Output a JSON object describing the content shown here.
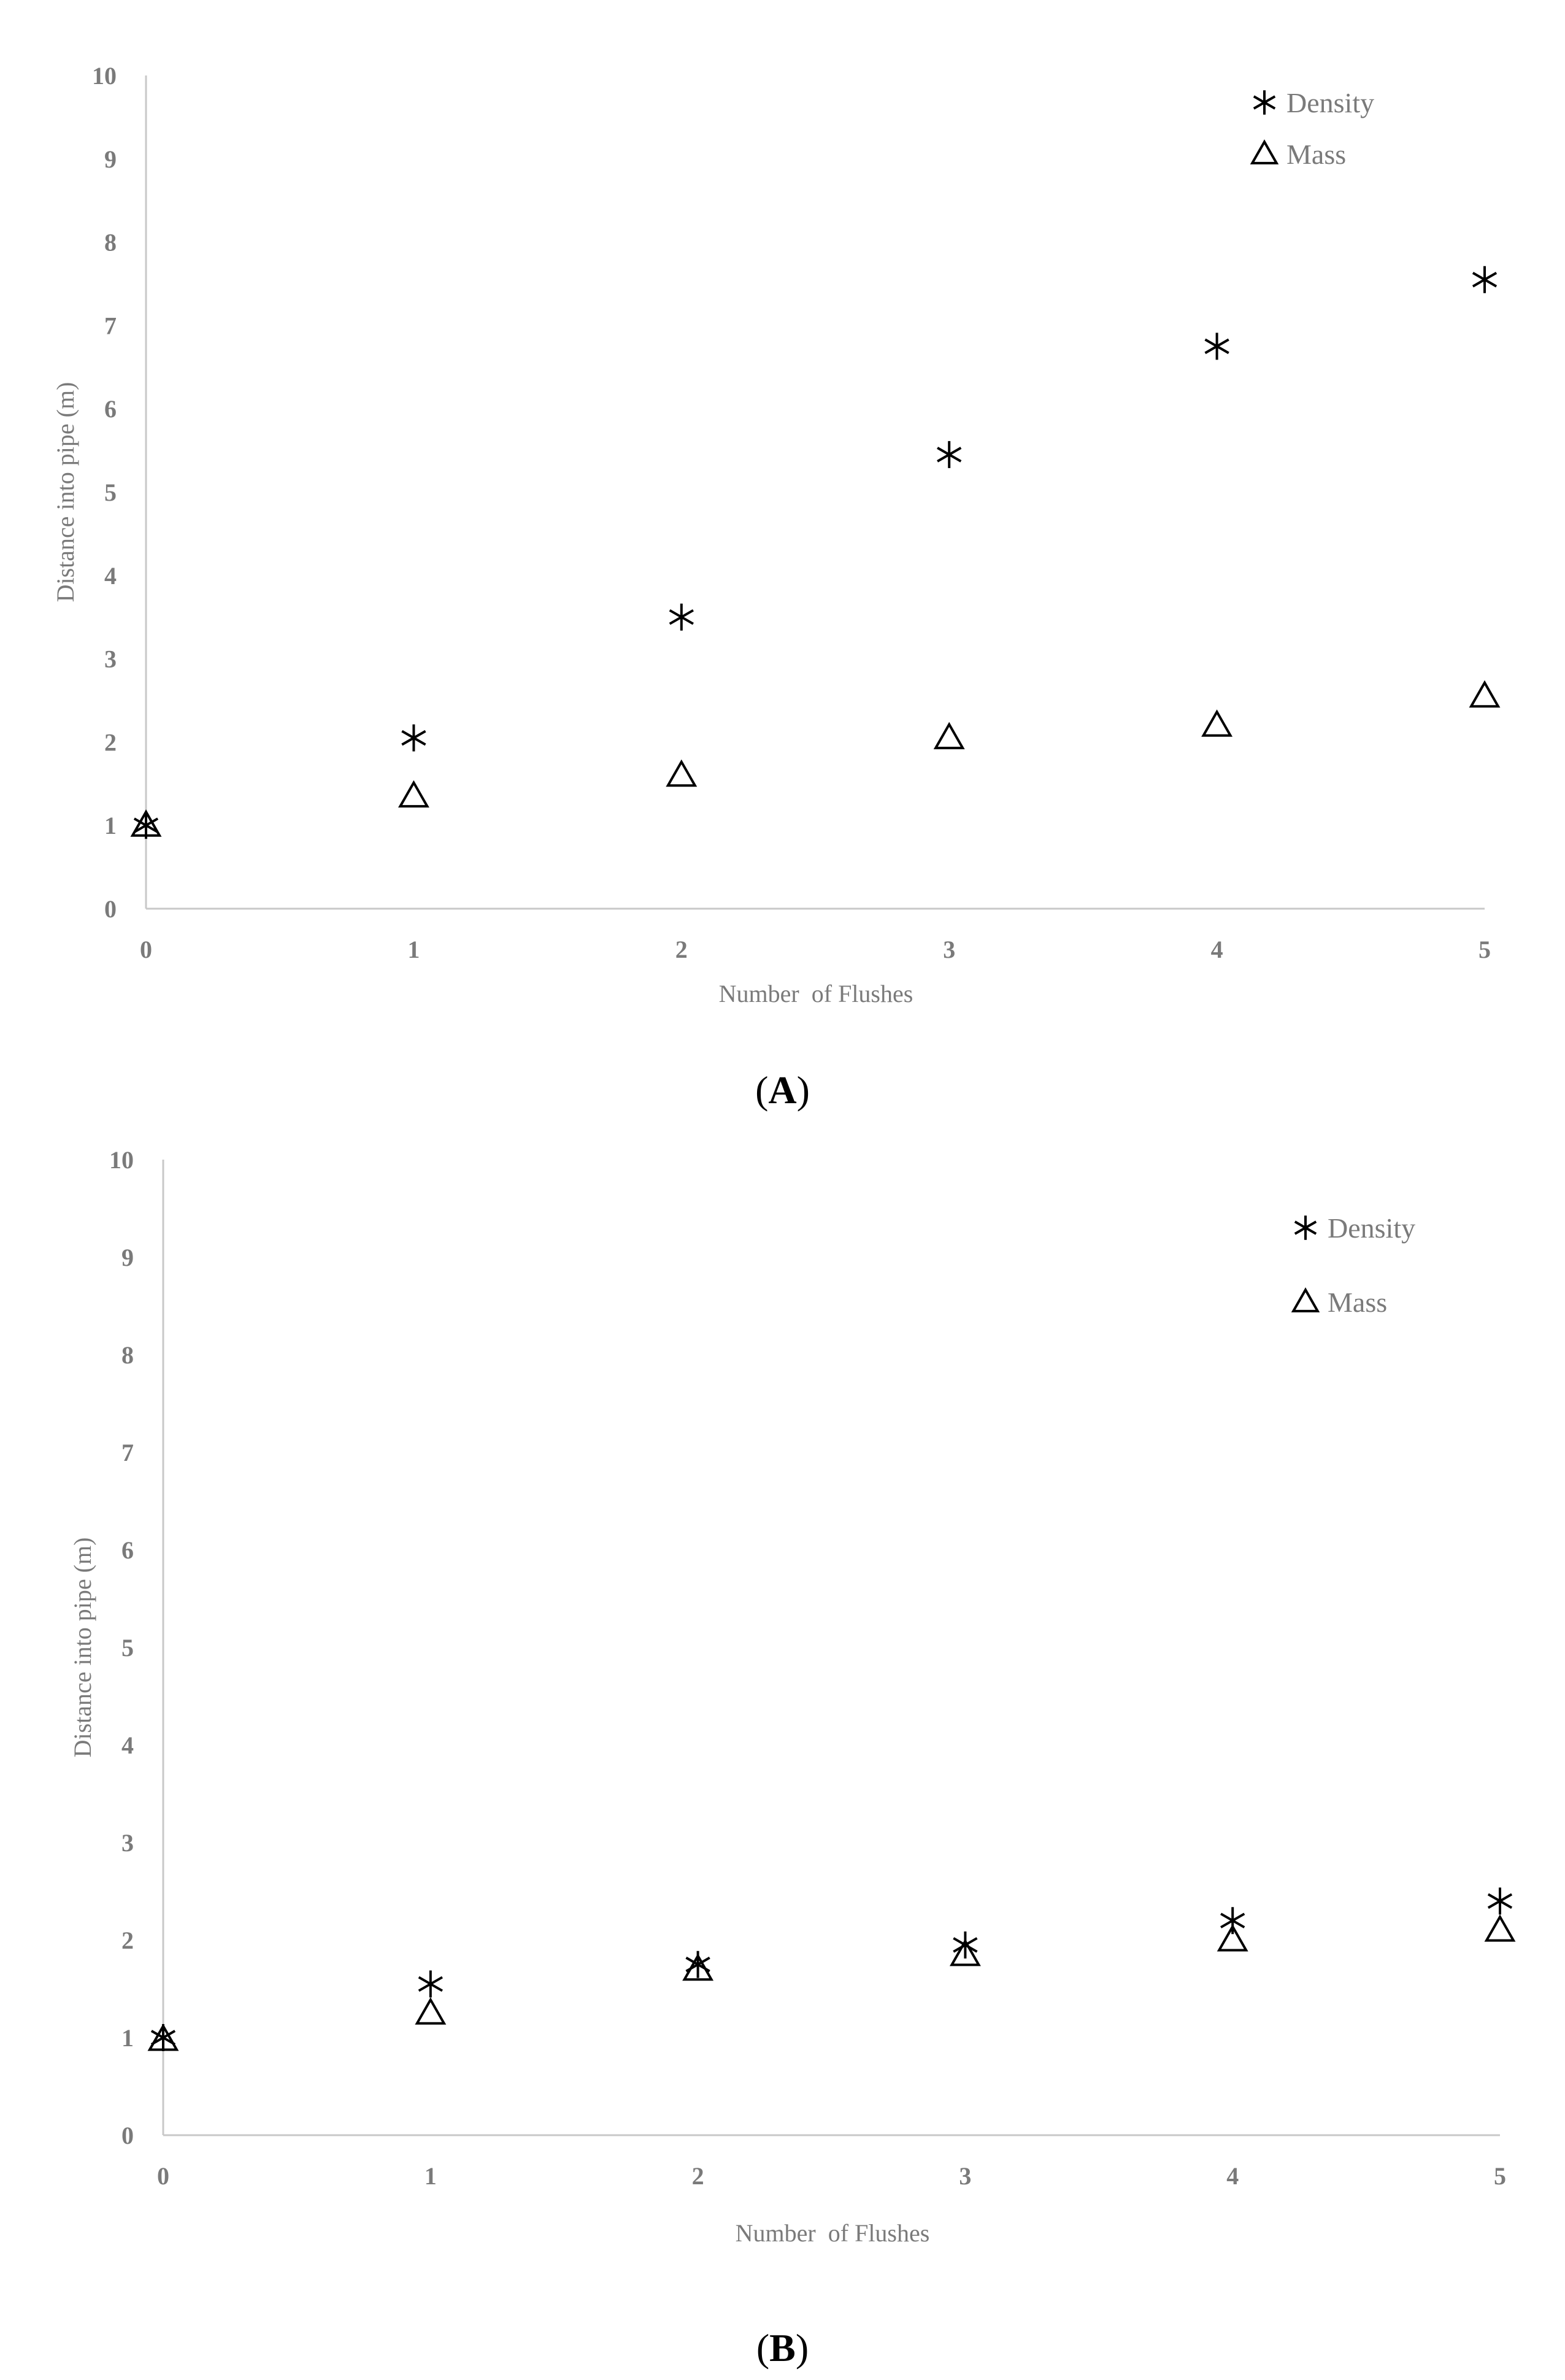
{
  "chart_data": [
    {
      "type": "scatter",
      "caption": "A",
      "xlabel": "Number  of Flushes",
      "ylabel": "Distance into pipe (m)",
      "xlim": [
        0,
        5
      ],
      "ylim": [
        0,
        10
      ],
      "xticks": [
        "0",
        "1",
        "2",
        "3",
        "4",
        "5"
      ],
      "yticks": [
        "0",
        "1",
        "2",
        "3",
        "4",
        "5",
        "6",
        "7",
        "8",
        "9",
        "10"
      ],
      "legend_position": "top-right",
      "grid": false,
      "series": [
        {
          "name": "Density",
          "marker": "asterisk",
          "x": [
            0,
            1,
            2,
            3,
            4,
            5
          ],
          "y": [
            1.0,
            2.05,
            3.5,
            5.45,
            6.75,
            7.55
          ]
        },
        {
          "name": "Mass",
          "marker": "triangle",
          "x": [
            0,
            1,
            2,
            3,
            4,
            5
          ],
          "y": [
            1.0,
            1.35,
            1.6,
            2.05,
            2.2,
            2.55
          ]
        }
      ]
    },
    {
      "type": "scatter",
      "caption": "B",
      "xlabel": "Number  of Flushes",
      "ylabel": "Distance into pipe (m)",
      "xlim": [
        0,
        5
      ],
      "ylim": [
        0,
        10
      ],
      "xticks": [
        "0",
        "1",
        "2",
        "3",
        "4",
        "5"
      ],
      "yticks": [
        "0",
        "1",
        "2",
        "3",
        "4",
        "5",
        "6",
        "7",
        "8",
        "9",
        "10"
      ],
      "legend_position": "top-right",
      "grid": false,
      "series": [
        {
          "name": "Density",
          "marker": "asterisk",
          "x": [
            0,
            1,
            2,
            3,
            4,
            5
          ],
          "y": [
            1.0,
            1.55,
            1.75,
            1.95,
            2.2,
            2.4
          ]
        },
        {
          "name": "Mass",
          "marker": "triangle",
          "x": [
            0,
            1,
            2,
            3,
            4,
            5
          ],
          "y": [
            0.98,
            1.25,
            1.7,
            1.85,
            2.0,
            2.1
          ]
        }
      ]
    }
  ]
}
